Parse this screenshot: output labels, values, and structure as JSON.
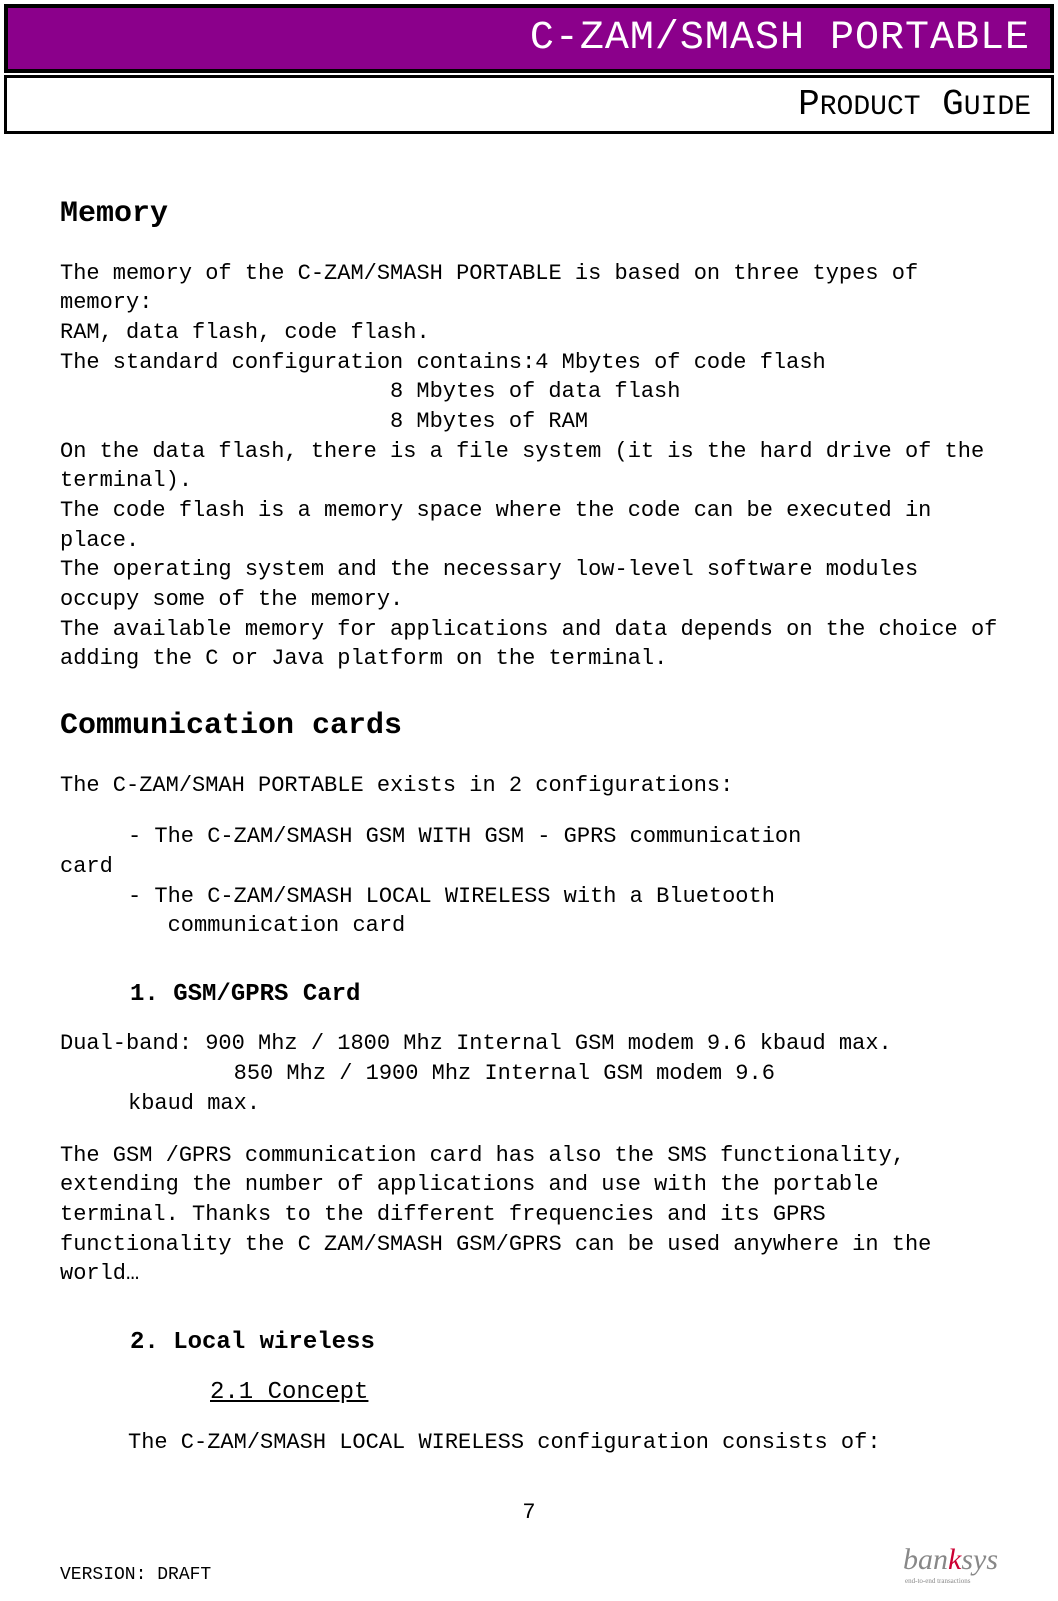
{
  "header": {
    "title_main": "C-ZAM/SMASH",
    "title_sub": " PORTABLE",
    "product_guide": "Product Guide"
  },
  "sections": {
    "memory": {
      "heading": "Memory",
      "p1": "The memory of the C-ZAM/SMASH PORTABLE is based on three types of memory:",
      "p2": "RAM, data flash, code flash.",
      "p3": "The standard configuration contains:4 Mbytes of code flash",
      "p4": "8 Mbytes of data flash",
      "p5": "8 Mbytes of RAM",
      "p6": "On the data flash, there is a file system (it is the hard drive of the terminal).",
      "p7": "The code flash is a memory space where the code can be executed in place.",
      "p8": "The operating system and the necessary low-level software modules occupy some of the memory.",
      "p9": "The available memory for applications and data depends on the choice of adding the C or Java platform on the terminal."
    },
    "comm": {
      "heading": "Communication cards",
      "p1": "The C-ZAM/SMAH PORTABLE exists in 2 configurations:",
      "li1": "- The C-ZAM/SMASH GSM WITH GSM - GPRS communication",
      "li1b": "card",
      "li2": "- The C-ZAM/SMASH LOCAL WIRELESS with a Bluetooth",
      "li2b": "   communication card",
      "sub1": {
        "heading": "1. GSM/GPRS Card",
        "p1": "Dual-band: 900 Mhz / 1800 Mhz Internal GSM modem 9.6 kbaud max.",
        "p2": "        850 Mhz / 1900 Mhz Internal GSM modem 9.6",
        "p2b": "kbaud max.",
        "p3": "The GSM /GPRS communication card has also the SMS functionality, extending the number of applications and use with the portable terminal. Thanks to the different frequencies and its GPRS functionality the C ZAM/SMASH GSM/GPRS can be used anywhere in the world…"
      },
      "sub2": {
        "heading": "2. Local wireless",
        "concept_heading": "2.1 Concept",
        "p1": "The C-ZAM/SMASH LOCAL WIRELESS configuration consists of:"
      }
    }
  },
  "footer": {
    "page": "7",
    "version": "VERSION: DRAFT",
    "logo_part1": "ban",
    "logo_part2": "k",
    "logo_part3": "sys",
    "logo_sub": "end-to-end transactions"
  },
  "colors": {
    "header_bg": "#8b008b",
    "header_text": "#ffffff",
    "border": "#000000",
    "body_text": "#000000",
    "logo_gray": "#888888",
    "logo_red": "#cc0033"
  }
}
